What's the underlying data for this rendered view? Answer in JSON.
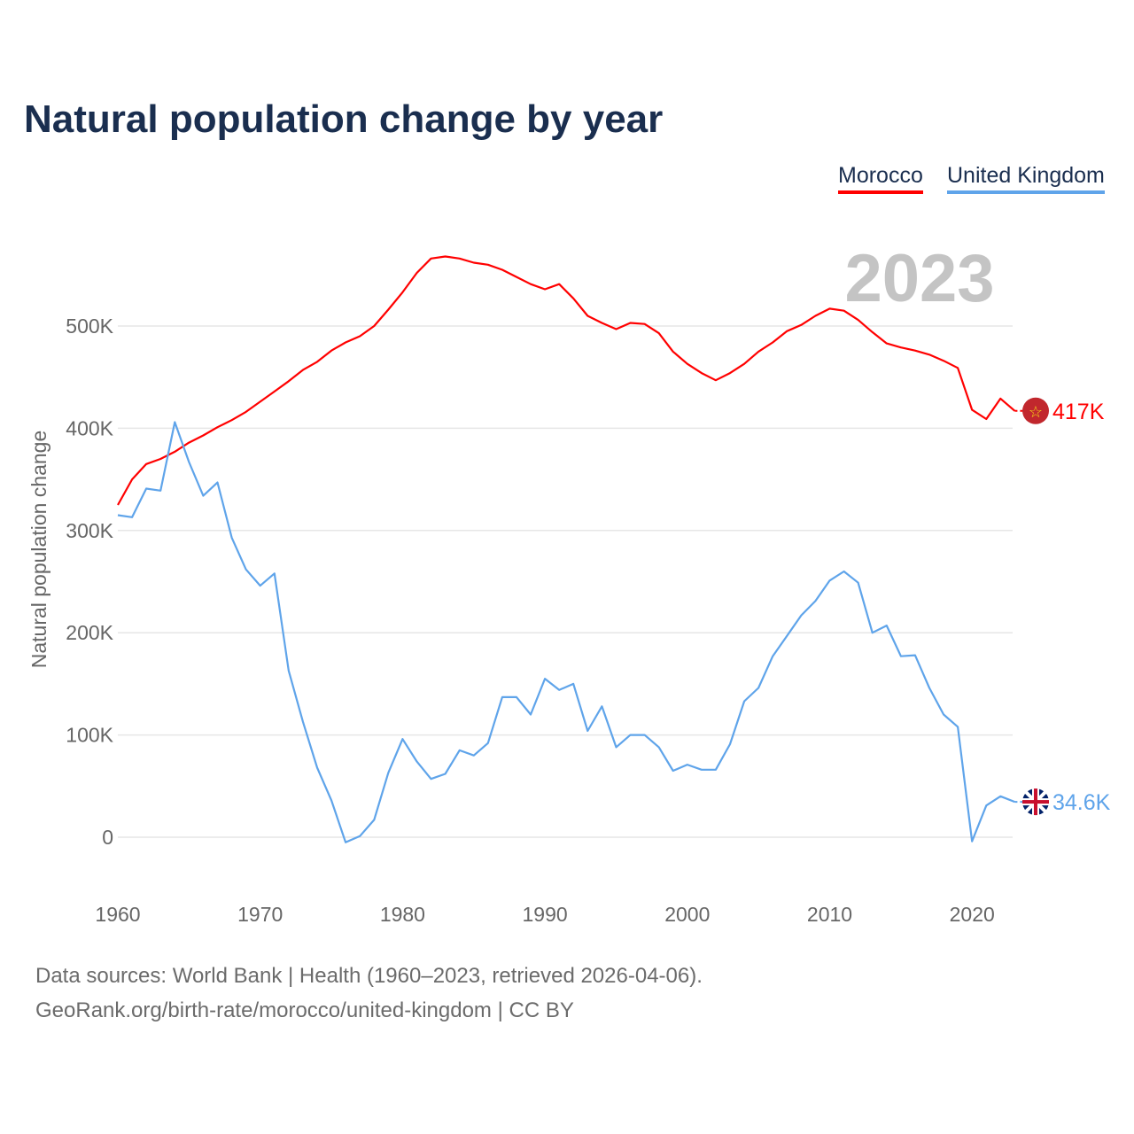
{
  "chart_data": {
    "type": "line",
    "title": "Natural population change by year",
    "ylabel": "Natural population change",
    "xlabel": "",
    "year_watermark": "2023",
    "xlim": [
      1960,
      2023
    ],
    "ylim": [
      -50000,
      600000
    ],
    "x_ticks": [
      1960,
      1970,
      1980,
      1990,
      2000,
      2010,
      2020
    ],
    "x_tick_labels": [
      "1960",
      "1970",
      "1980",
      "1990",
      "2000",
      "2010",
      "2020"
    ],
    "y_ticks": [
      0,
      100000,
      200000,
      300000,
      400000,
      500000
    ],
    "y_tick_labels": [
      "0",
      "100K",
      "200K",
      "300K",
      "400K",
      "500K"
    ],
    "grid": true,
    "legend_position": "top-right",
    "x": [
      1960,
      1961,
      1962,
      1963,
      1964,
      1965,
      1966,
      1967,
      1968,
      1969,
      1970,
      1971,
      1972,
      1973,
      1974,
      1975,
      1976,
      1977,
      1978,
      1979,
      1980,
      1981,
      1982,
      1983,
      1984,
      1985,
      1986,
      1987,
      1988,
      1989,
      1990,
      1991,
      1992,
      1993,
      1994,
      1995,
      1996,
      1997,
      1998,
      1999,
      2000,
      2001,
      2002,
      2003,
      2004,
      2005,
      2006,
      2007,
      2008,
      2009,
      2010,
      2011,
      2012,
      2013,
      2014,
      2015,
      2016,
      2017,
      2018,
      2019,
      2020,
      2021,
      2022,
      2023
    ],
    "series": [
      {
        "name": "Morocco",
        "color": "#ff0000",
        "end_label": "417K",
        "values": [
          325000,
          350000,
          365000,
          370000,
          377000,
          386000,
          393000,
          401000,
          408000,
          416000,
          426000,
          436000,
          446000,
          457000,
          465000,
          476000,
          484000,
          490000,
          500000,
          516000,
          533000,
          552000,
          566000,
          568000,
          566000,
          562000,
          560000,
          555000,
          548000,
          541000,
          536000,
          541000,
          527000,
          510000,
          503000,
          497000,
          503000,
          502000,
          493000,
          475000,
          463000,
          454000,
          447000,
          454000,
          463000,
          475000,
          484000,
          495000,
          501000,
          510000,
          517000,
          515000,
          506000,
          494000,
          483000,
          479000,
          476000,
          472000,
          466000,
          459000,
          418000,
          409000,
          429000,
          417000
        ]
      },
      {
        "name": "United Kingdom",
        "color": "#5fa4ea",
        "end_label": "34.6K",
        "values": [
          315000,
          313000,
          341000,
          339000,
          406000,
          367000,
          334000,
          347000,
          293000,
          262000,
          246000,
          258000,
          163000,
          113000,
          68000,
          36000,
          -5000,
          1000,
          17000,
          63000,
          96000,
          74000,
          57000,
          62000,
          85000,
          80000,
          92000,
          137000,
          137000,
          120000,
          155000,
          144000,
          150000,
          104000,
          128000,
          88000,
          100000,
          100000,
          88000,
          65000,
          71000,
          66000,
          66000,
          91000,
          133000,
          146000,
          177000,
          197000,
          217000,
          231000,
          251000,
          260000,
          249000,
          200000,
          207000,
          177000,
          178000,
          146000,
          120000,
          108000,
          -4000,
          31000,
          40000,
          34600
        ]
      }
    ]
  },
  "source": {
    "line1": "Data sources: World Bank | Health (1960–2023, retrieved 2026-04-06).",
    "line2": "GeoRank.org/birth-rate/morocco/united-kingdom | CC BY"
  }
}
